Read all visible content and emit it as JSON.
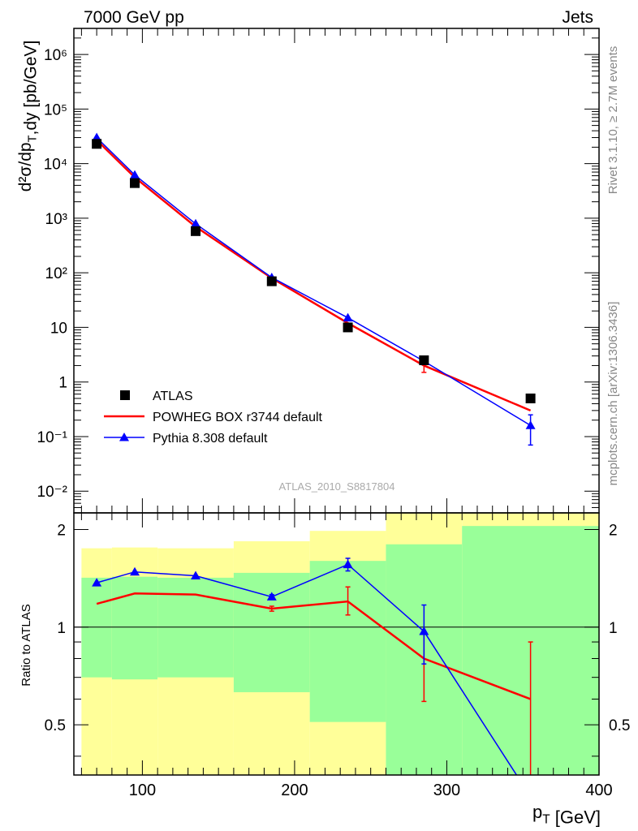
{
  "header": {
    "left": "7000 GeV pp",
    "right": "Jets"
  },
  "side_labels": {
    "rivet": "Rivet 3.1.10, ≥ 2.7M events",
    "mcplots": "mcplots.cern.ch [arXiv:1306.3436]"
  },
  "watermark": "ATLAS_2010_S8817804",
  "colors": {
    "data": "#000000",
    "powheg": "#ff0000",
    "pythia": "#0000ff",
    "band_green": "#99ff99",
    "band_yellow": "#ffff99"
  },
  "chart_data": [
    {
      "type": "scatter",
      "panel": "main",
      "ylabel": "d²σ/dp_T,dy [pb/GeV]",
      "yscale": "log",
      "xlim": [
        55,
        400
      ],
      "ylim": [
        0.004,
        3000000
      ],
      "y_ticks": [
        {
          "value": 0.01,
          "label": "10⁻²"
        },
        {
          "value": 0.1,
          "label": "10⁻¹"
        },
        {
          "value": 1,
          "label": "1"
        },
        {
          "value": 10,
          "label": "10"
        },
        {
          "value": 100,
          "label": "10²"
        },
        {
          "value": 1000,
          "label": "10³"
        },
        {
          "value": 10000,
          "label": "10⁴"
        },
        {
          "value": 100000,
          "label": "10⁵"
        },
        {
          "value": 1000000,
          "label": "10⁶"
        }
      ],
      "legend_position": "bottom-left",
      "series": [
        {
          "name": "ATLAS",
          "style": "square-markers",
          "x": [
            70,
            95,
            135,
            185,
            235,
            285,
            355
          ],
          "y": [
            23000,
            4400,
            580,
            70,
            10,
            2.5,
            0.5
          ]
        },
        {
          "name": "POWHEG BOX r3744 default",
          "style": "line",
          "x": [
            70,
            95,
            135,
            185,
            235,
            285,
            355
          ],
          "y": [
            27000,
            5600,
            700,
            80,
            12,
            2.0,
            0.3
          ],
          "err_low": [
            0,
            0,
            0,
            0,
            0,
            0.5,
            0
          ],
          "err_high": [
            0,
            0,
            0,
            0,
            0,
            0.4,
            0
          ]
        },
        {
          "name": "Pythia 8.308 default",
          "style": "line-triangles",
          "x": [
            70,
            95,
            135,
            185,
            235,
            285,
            355
          ],
          "y": [
            30000,
            6200,
            790,
            82,
            15,
            2.4,
            0.16
          ],
          "err_low": [
            0,
            0,
            0,
            0,
            0,
            0,
            0.09
          ],
          "err_high": [
            0,
            0,
            0,
            0,
            0,
            0,
            0.09
          ]
        }
      ]
    },
    {
      "type": "line",
      "panel": "ratio",
      "xlabel": "p_T [GeV]",
      "ylabel": "Ratio to ATLAS",
      "xlim": [
        55,
        400
      ],
      "ylim": [
        0.35,
        2.25
      ],
      "x_ticks": [
        100,
        200,
        300,
        400
      ],
      "y_ticks": [
        0.5,
        1,
        2
      ],
      "reference_line": 1,
      "bands": {
        "bins": [
          [
            60,
            80
          ],
          [
            80,
            110
          ],
          [
            110,
            160
          ],
          [
            160,
            210
          ],
          [
            210,
            260
          ],
          [
            260,
            310
          ],
          [
            310,
            400
          ]
        ],
        "green": [
          [
            0.7,
            1.42
          ],
          [
            0.69,
            1.43
          ],
          [
            0.7,
            1.42
          ],
          [
            0.63,
            1.47
          ],
          [
            0.51,
            1.6
          ],
          [
            0.3,
            1.8
          ],
          [
            0.3,
            2.05
          ]
        ],
        "yellow": [
          [
            0.3,
            1.75
          ],
          [
            0.3,
            1.76
          ],
          [
            0.3,
            1.75
          ],
          [
            0.3,
            1.84
          ],
          [
            0.3,
            1.98
          ],
          [
            0.3,
            2.35
          ],
          [
            0.3,
            2.35
          ]
        ]
      },
      "series": [
        {
          "name": "POWHEG BOX r3744 default",
          "x": [
            70,
            95,
            135,
            185,
            235,
            285,
            355
          ],
          "y": [
            1.18,
            1.27,
            1.26,
            1.14,
            1.2,
            0.8,
            0.6
          ],
          "err_low": [
            0,
            0,
            0,
            0.02,
            0.11,
            0.21,
            0.27
          ],
          "err_high": [
            0,
            0,
            0,
            0.02,
            0.13,
            0.15,
            0.3
          ]
        },
        {
          "name": "Pythia 8.308 default",
          "x": [
            70,
            95,
            135,
            185,
            235,
            285,
            355
          ],
          "y": [
            1.37,
            1.48,
            1.44,
            1.24,
            1.56,
            0.97,
            0.3
          ],
          "err_low": [
            0,
            0,
            0,
            0.02,
            0.07,
            0.2,
            0
          ],
          "err_high": [
            0,
            0,
            0,
            0.02,
            0.07,
            0.2,
            0
          ]
        }
      ]
    }
  ]
}
